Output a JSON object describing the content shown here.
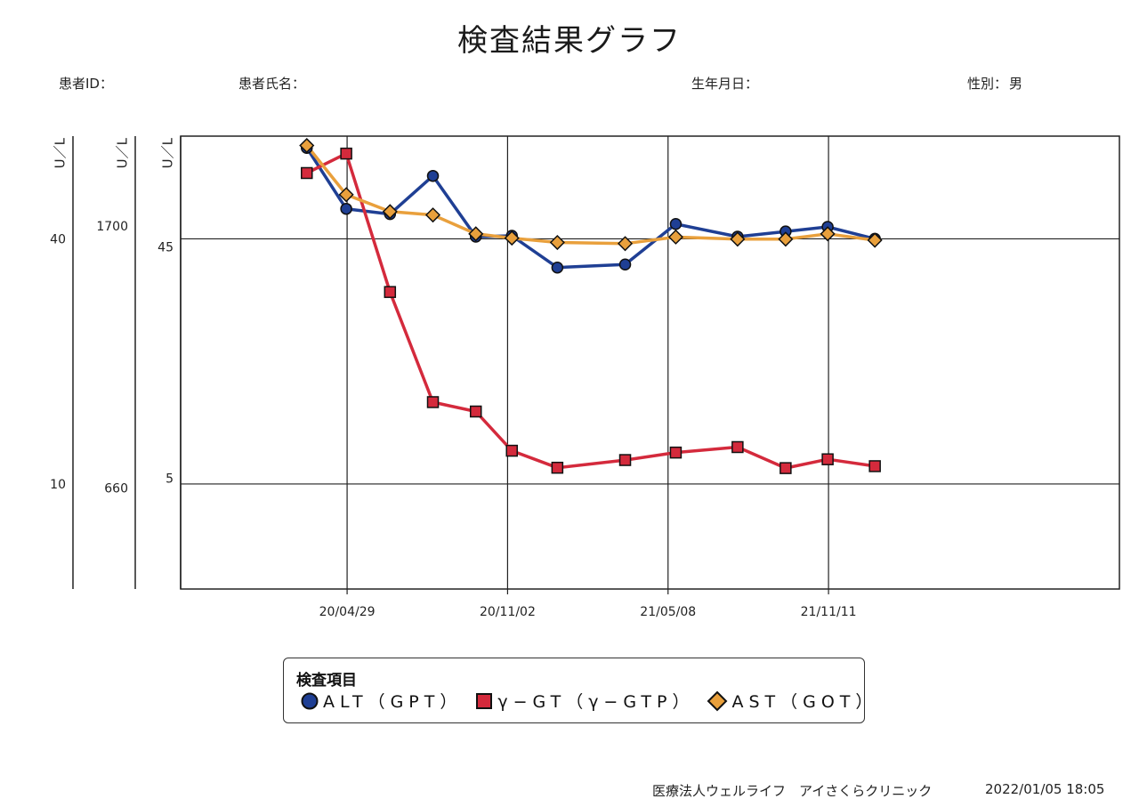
{
  "header": {
    "title": "検査結果グラフ",
    "patient_id_label": "患者ID：",
    "patient_id_value": "",
    "patient_name_label": "患者氏名：",
    "patient_name_value": "",
    "birthdate_label": "生年月日：",
    "birthdate_value": "",
    "sex_label": "性別：",
    "sex_value": "男"
  },
  "legend": {
    "title": "検査項目",
    "items": [
      {
        "label": "ALT（GPT）",
        "marker": "circle",
        "color": "#1f3f94"
      },
      {
        "label": "γ−GT（γ−GTP）",
        "marker": "square",
        "color": "#d42a3c"
      },
      {
        "label": "AST（GOT）",
        "marker": "diamond",
        "color": "#e9a03c"
      }
    ]
  },
  "footer": {
    "clinic": "医療法人ウェルライフ　アイさくらクリニック",
    "timestamp": "2022/01/05 18:05"
  },
  "chart_data": {
    "type": "line",
    "x_type": "date",
    "x_tick_labels": [
      "20/04/29",
      "20/11/02",
      "21/05/08",
      "21/11/11"
    ],
    "x_ticks": [
      "2020-04-29",
      "2020-11-02",
      "2021-05-08",
      "2021-11-11"
    ],
    "xlim": [
      "2019-10-18",
      "2022-10-16"
    ],
    "grid": true,
    "legend_position": "bottom",
    "y_axes": [
      {
        "id": "alt",
        "unit_label": "U／L",
        "scale": "log",
        "ticks": [
          10,
          40
        ],
        "range": [
          5.52,
          71.5
        ]
      },
      {
        "id": "ggt",
        "unit_label": "U／L",
        "scale": "log",
        "ticks": [
          660,
          1700
        ],
        "range": [
          458,
          2354
        ]
      },
      {
        "id": "ast",
        "unit_label": "U／L",
        "scale": "log",
        "ticks": [
          5,
          45
        ],
        "range": [
          1.75,
          129
        ]
      }
    ],
    "series": [
      {
        "name": "ALT（GPT）",
        "axis": "alt",
        "color": "#1f3f94",
        "marker": "circle",
        "points": [
          [
            "2020-03-13",
            66.9
          ],
          [
            "2020-04-28",
            47.4
          ],
          [
            "2020-06-18",
            46.0
          ],
          [
            "2020-08-07",
            57.1
          ],
          [
            "2020-09-26",
            40.5
          ],
          [
            "2020-11-07",
            40.7
          ],
          [
            "2020-12-30",
            34.0
          ],
          [
            "2021-03-19",
            34.6
          ],
          [
            "2021-05-17",
            43.5
          ],
          [
            "2021-07-28",
            40.5
          ],
          [
            "2021-09-22",
            41.7
          ],
          [
            "2021-11-10",
            42.8
          ],
          [
            "2022-01-04",
            40.0
          ]
        ]
      },
      {
        "name": "γ−GT（γ−GTP）",
        "axis": "ggt",
        "color": "#d42a3c",
        "marker": "square",
        "points": [
          [
            "2020-03-13",
            2060
          ],
          [
            "2020-04-28",
            2210
          ],
          [
            "2020-06-18",
            1340
          ],
          [
            "2020-08-07",
            900
          ],
          [
            "2020-09-26",
            870
          ],
          [
            "2020-11-07",
            755
          ],
          [
            "2020-12-30",
            710
          ],
          [
            "2021-03-19",
            730
          ],
          [
            "2021-05-17",
            750
          ],
          [
            "2021-07-28",
            765
          ],
          [
            "2021-09-22",
            709
          ],
          [
            "2021-11-10",
            732
          ],
          [
            "2022-01-04",
            714
          ]
        ]
      },
      {
        "name": "AST（GOT）",
        "axis": "ast",
        "color": "#e9a03c",
        "marker": "diamond",
        "points": [
          [
            "2020-03-13",
            118
          ],
          [
            "2020-04-28",
            74
          ],
          [
            "2020-06-18",
            63
          ],
          [
            "2020-08-07",
            61
          ],
          [
            "2020-09-26",
            51
          ],
          [
            "2020-11-07",
            49
          ],
          [
            "2020-12-30",
            47
          ],
          [
            "2021-03-19",
            46.5
          ],
          [
            "2021-05-17",
            49.5
          ],
          [
            "2021-07-28",
            48.5
          ],
          [
            "2021-09-22",
            48.5
          ],
          [
            "2021-11-10",
            51
          ],
          [
            "2022-01-04",
            48
          ]
        ]
      }
    ]
  }
}
